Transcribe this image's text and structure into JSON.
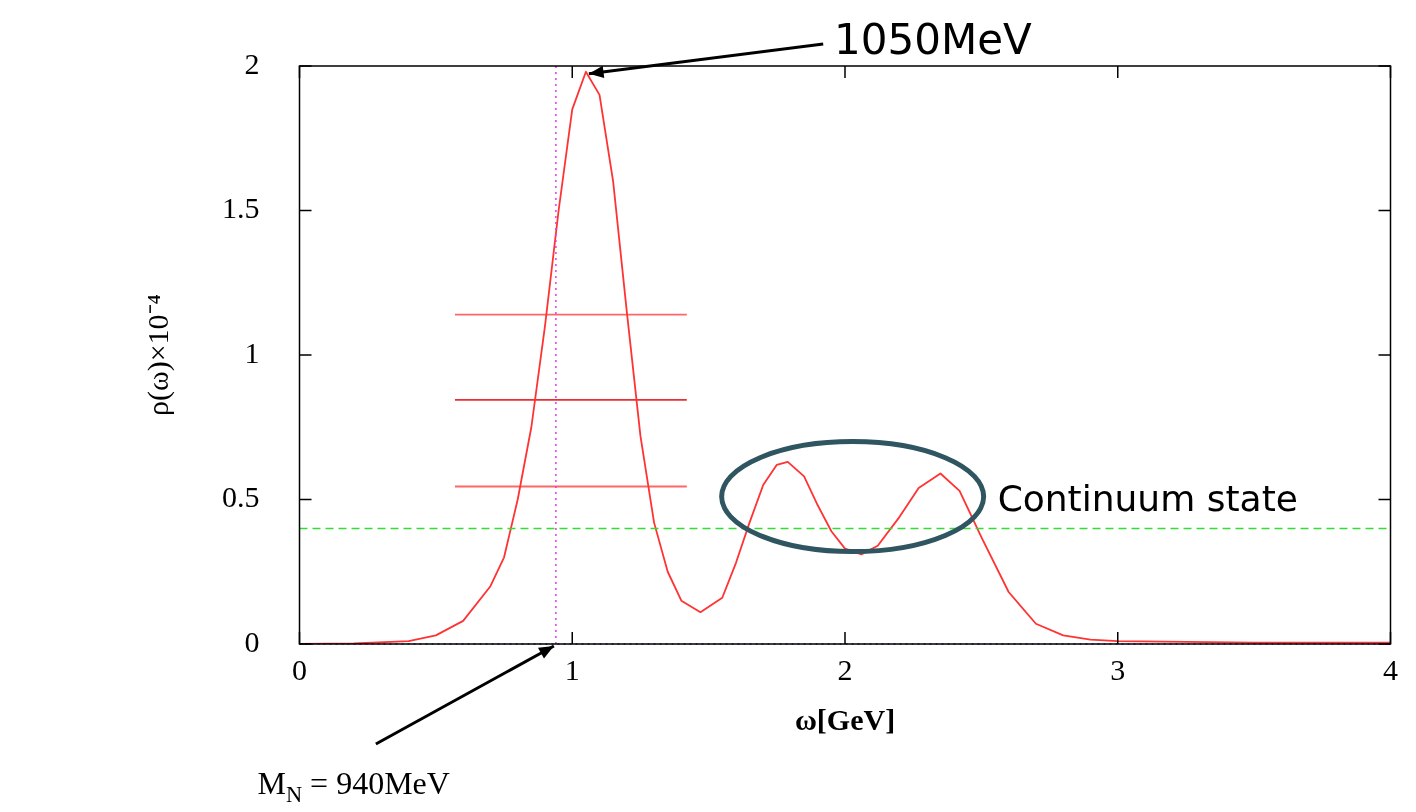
{
  "chart_data": {
    "type": "line",
    "xlabel": "ω[GeV]",
    "ylabel": "ρ(ω)×10⁻⁴",
    "xlim": [
      0,
      4
    ],
    "ylim": [
      0,
      2
    ],
    "xticks": [
      0,
      1,
      2,
      3,
      4
    ],
    "yticks": [
      0,
      {
        "value": 0.5,
        "label": "0.5"
      },
      1,
      {
        "value": 1.5,
        "label": "1.5"
      },
      2
    ],
    "grid": false,
    "legend": false,
    "marker": "none",
    "series": [
      {
        "color": "#ff3333",
        "x": [
          0,
          0.2,
          0.4,
          0.5,
          0.6,
          0.7,
          0.75,
          0.8,
          0.85,
          0.9,
          0.95,
          1.0,
          1.05,
          1.1,
          1.15,
          1.2,
          1.25,
          1.3,
          1.35,
          1.4,
          1.47,
          1.55,
          1.6,
          1.65,
          1.7,
          1.75,
          1.79,
          1.85,
          1.9,
          1.95,
          2.0,
          2.06,
          2.12,
          2.2,
          2.27,
          2.35,
          2.42,
          2.5,
          2.6,
          2.7,
          2.8,
          2.9,
          3.0,
          3.5,
          4.0
        ],
        "values": [
          0,
          0.002,
          0.01,
          0.03,
          0.08,
          0.2,
          0.3,
          0.5,
          0.75,
          1.1,
          1.5,
          1.85,
          1.98,
          1.9,
          1.6,
          1.15,
          0.72,
          0.42,
          0.25,
          0.15,
          0.11,
          0.16,
          0.28,
          0.42,
          0.55,
          0.62,
          0.63,
          0.58,
          0.48,
          0.39,
          0.33,
          0.31,
          0.34,
          0.44,
          0.54,
          0.59,
          0.53,
          0.37,
          0.18,
          0.07,
          0.03,
          0.015,
          0.01,
          0.005,
          0.005
        ]
      },
      {
        "color": "#ff6666",
        "x": [
          0.57,
          1.42
        ],
        "values": [
          1.14,
          1.14
        ]
      },
      {
        "color": "#e83030",
        "x": [
          0.57,
          1.42
        ],
        "values": [
          0.845,
          0.845
        ]
      },
      {
        "color": "#ff6666",
        "x": [
          0.57,
          1.42
        ],
        "values": [
          0.545,
          0.545
        ]
      }
    ],
    "ref_lines": [
      {
        "axis": "x",
        "value": 0.94,
        "color": "#e040e0",
        "line_style": "dotted"
      },
      {
        "axis": "y",
        "value": 0.4,
        "color": "#33dd33",
        "line_style": "dashed"
      },
      {
        "axis": "y",
        "value": 0,
        "color": "#4444ff",
        "line_style": "dotted"
      }
    ],
    "annotations": [
      {
        "text": "1050MeV",
        "x": 1.05,
        "y": 1.98
      },
      {
        "text": "M$_{N}$ = 940MeV",
        "x": 0.94,
        "y": 0
      },
      "Continuum state"
    ]
  }
}
